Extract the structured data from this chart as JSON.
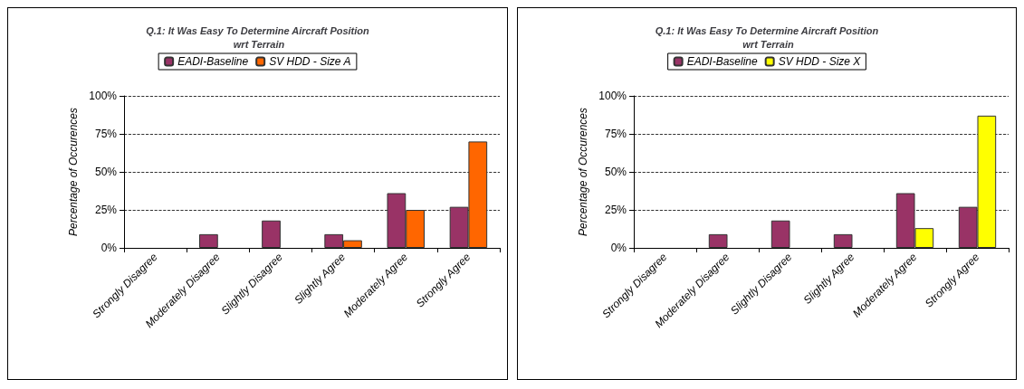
{
  "chart_data": [
    {
      "type": "bar",
      "title": "Q.1: It Was Easy To Determine Aircraft Position wrt Terrain",
      "ylabel": "Percentage of Occurences",
      "categories": [
        "Strongly Disagree",
        "Moderately Disagree",
        "Slightly Disagree",
        "Slightly Agree",
        "Moderately Agree",
        "Strongly Agree"
      ],
      "series": [
        {
          "name": "EADI-Baseline",
          "color": "#993366",
          "values": [
            0,
            9,
            18,
            9,
            36,
            27
          ]
        },
        {
          "name": "SV HDD - Size A",
          "color": "#ff6600",
          "values": [
            0,
            0,
            0,
            5,
            25,
            70
          ]
        }
      ],
      "ylim": [
        0,
        100
      ],
      "yticks": [
        {
          "value": 0,
          "label": "0%"
        },
        {
          "value": 25,
          "label": "25%"
        },
        {
          "value": 50,
          "label": "50%"
        },
        {
          "value": 75,
          "label": "75%"
        },
        {
          "value": 100,
          "label": "100%"
        }
      ],
      "grid": "y",
      "line_style": "dashed",
      "legend": "top"
    },
    {
      "type": "bar",
      "title": "Q.1: It Was Easy To Determine Aircraft Position wrt Terrain",
      "ylabel": "Percentage of Occurences",
      "categories": [
        "Strongly Disagree",
        "Moderately Disagree",
        "Slightly Disagree",
        "Slightly Agree",
        "Moderately Agree",
        "Strongly Agree"
      ],
      "series": [
        {
          "name": "EADI-Baseline",
          "color": "#993366",
          "values": [
            0,
            9,
            18,
            9,
            36,
            27
          ]
        },
        {
          "name": "SV HDD - Size X",
          "color": "#ffff00",
          "values": [
            0,
            0,
            0,
            0,
            13,
            87
          ]
        }
      ],
      "ylim": [
        0,
        100
      ],
      "yticks": [
        {
          "value": 0,
          "label": "0%"
        },
        {
          "value": 25,
          "label": "25%"
        },
        {
          "value": 50,
          "label": "50%"
        },
        {
          "value": 75,
          "label": "75%"
        },
        {
          "value": 100,
          "label": "100%"
        }
      ],
      "grid": "y",
      "line_style": "dashed",
      "legend": "top"
    }
  ]
}
